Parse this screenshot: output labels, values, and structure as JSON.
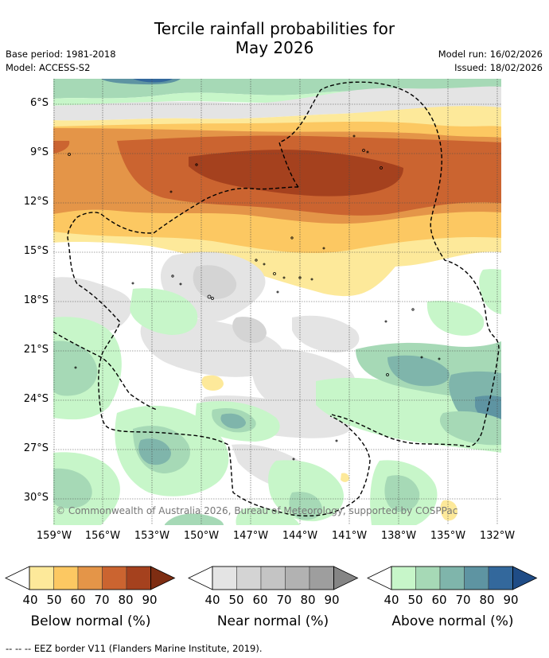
{
  "title": {
    "line1": "Tercile rainfall probabilities for",
    "line2": "May 2026"
  },
  "meta": {
    "base_period": "Base period: 1981-2018",
    "model": "Model: ACCESS-S2",
    "model_run": "Model run: 16/02/2026",
    "issued": "Issued: 18/02/2026"
  },
  "map": {
    "lat_labels": [
      "6°S",
      "9°S",
      "12°S",
      "15°S",
      "18°S",
      "21°S",
      "24°S",
      "27°S",
      "30°S"
    ],
    "lon_labels": [
      "159°W",
      "156°W",
      "153°W",
      "150°W",
      "147°W",
      "144°W",
      "141°W",
      "138°W",
      "135°W",
      "132°W"
    ],
    "copyright": "© Commonwealth of Australia 2026, Bureau of Meteorology, supported by COSPPac"
  },
  "colorbars": [
    {
      "id": "below",
      "label": "Below normal (%)",
      "ticks": [
        "40",
        "50",
        "60",
        "70",
        "80",
        "90"
      ],
      "colors": [
        "#fde99a",
        "#fcc862",
        "#e49548",
        "#cb6430",
        "#a5411e",
        "#7e2d12"
      ]
    },
    {
      "id": "near",
      "label": "Near normal (%)",
      "ticks": [
        "40",
        "50",
        "60",
        "70",
        "80",
        "90"
      ],
      "colors": [
        "#e4e4e4",
        "#d4d4d4",
        "#c4c4c4",
        "#b2b2b2",
        "#9e9e9e",
        "#858585"
      ]
    },
    {
      "id": "above",
      "label": "Above normal (%)",
      "ticks": [
        "40",
        "50",
        "60",
        "70",
        "80",
        "90"
      ],
      "colors": [
        "#c7f6c9",
        "#a6d9b6",
        "#7fb5ab",
        "#5e94a2",
        "#33689c",
        "#1f4c86"
      ]
    }
  ],
  "footnote": "--  --  -- EEZ border V11 (Flanders Marine Institute, 2019)."
}
